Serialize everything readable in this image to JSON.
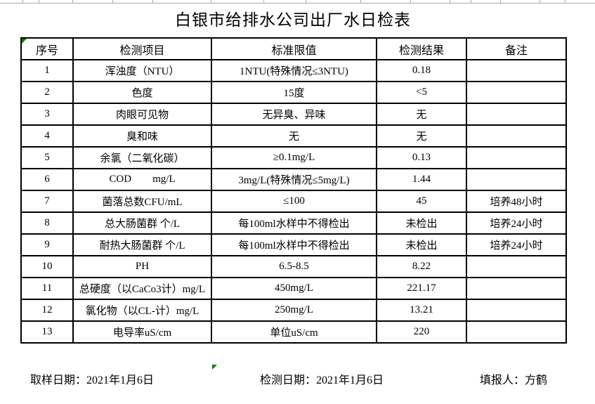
{
  "title": "白银市给排水公司出厂水日检表",
  "table": {
    "headers": [
      "序号",
      "检测项目",
      "标准限值",
      "检测结果",
      "备注"
    ],
    "rows": [
      {
        "no": "1",
        "item": "浑浊度（NTU）",
        "limit": "1NTU(特殊情况≤3NTU)",
        "result": "0.18",
        "note": ""
      },
      {
        "no": "2",
        "item": "色度",
        "limit": "15度",
        "result": "<5",
        "note": ""
      },
      {
        "no": "3",
        "item": "肉眼可见物",
        "limit": "无异臭、异味",
        "result": "无",
        "note": ""
      },
      {
        "no": "4",
        "item": "臭和味",
        "limit": "无",
        "result": "无",
        "note": ""
      },
      {
        "no": "5",
        "item": "余氯（二氧化碳）",
        "limit": "≥0.1mg/L",
        "result": "0.13",
        "note": ""
      },
      {
        "no": "6",
        "item": "COD        mg/L",
        "limit": "3mg/L(特殊情况≤5mg/L)",
        "result": "1.44",
        "note": ""
      },
      {
        "no": "7",
        "item": "菌落总数CFU/mL",
        "limit": "≤100",
        "result": "45",
        "note": "培养48小时"
      },
      {
        "no": "8",
        "item": "总大肠菌群 个/L",
        "limit": "每100ml水样中不得检出",
        "result": "未检出",
        "note": "培养24小时"
      },
      {
        "no": "9",
        "item": "耐热大肠菌群 个/L",
        "limit": "每100ml水样中不得检出",
        "result": "未检出",
        "note": "培养24小时"
      },
      {
        "no": "10",
        "item": "PH",
        "limit": "6.5-8.5",
        "result": "8.22",
        "note": ""
      },
      {
        "no": "11",
        "item": "总硬度（以CaCo3计）mg/L",
        "limit": "450mg/L",
        "result": "221.17",
        "note": ""
      },
      {
        "no": "12",
        "item": "氯化物（以CL-计）mg/L",
        "limit": "250mg/L",
        "result": "13.21",
        "note": ""
      },
      {
        "no": "13",
        "item": "电导率uS/cm",
        "limit": "单位uS/cm",
        "result": "220",
        "note": ""
      }
    ]
  },
  "footer": {
    "sampling_date": "取样日期：2021年1月6日",
    "test_date": "检测日期：2021年1月6日",
    "reporter": "填报人：方鹤"
  },
  "icons": {
    "error_flag": "excel-cell-error-corner-triangle"
  },
  "colors": {
    "flag_green": "#008000",
    "gridline_gray": "#ababab",
    "border_black": "#000000"
  }
}
